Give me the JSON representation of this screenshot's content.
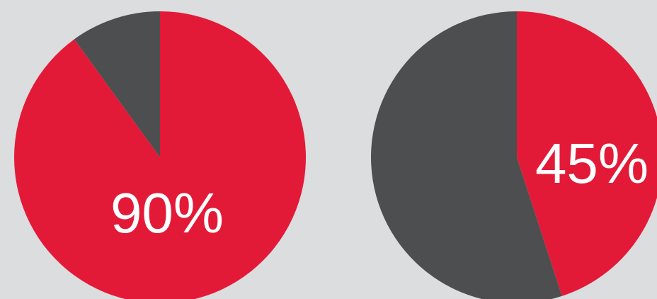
{
  "colors": {
    "background": "#dcdddf",
    "filled": "#e31a37",
    "remainder": "#4d4e50",
    "label": "#ffffff"
  },
  "chart_data": [
    {
      "type": "pie",
      "label": "90%",
      "slices": [
        {
          "name": "",
          "value": 90,
          "color": "#e31a37"
        },
        {
          "name": "",
          "value": 10,
          "color": "#4d4e50"
        }
      ]
    },
    {
      "type": "pie",
      "label": "45%",
      "slices": [
        {
          "name": "",
          "value": 45,
          "color": "#e31a37"
        },
        {
          "name": "",
          "value": 55,
          "color": "#4d4e50"
        }
      ]
    }
  ]
}
